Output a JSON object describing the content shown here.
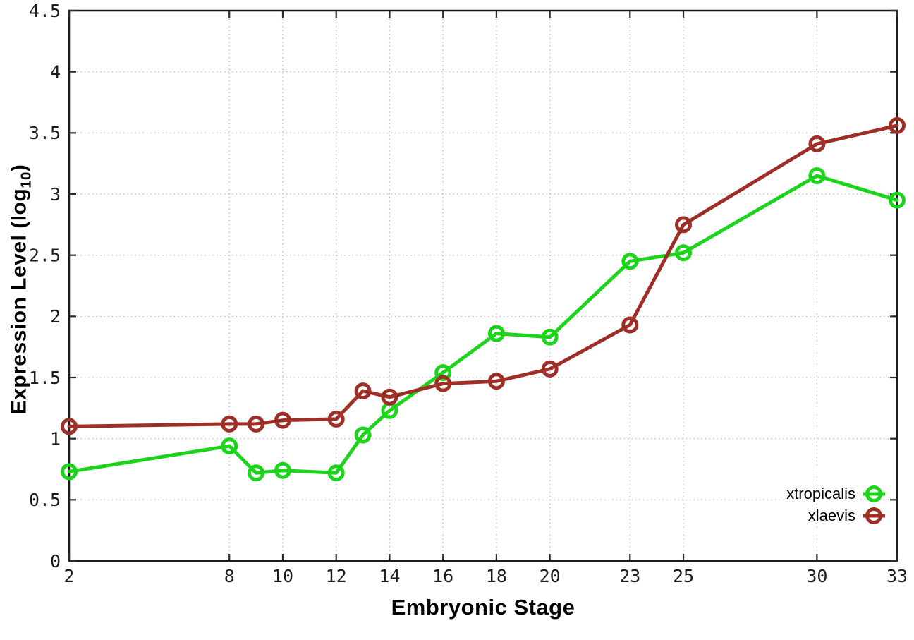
{
  "chart_data": {
    "type": "line",
    "title": "",
    "xlabel": "Embryonic Stage",
    "ylabel_parts": {
      "prefix": "Expression Level (log",
      "sub": "10",
      "suffix": ")"
    },
    "xlim": [
      2,
      33
    ],
    "ylim": [
      0,
      4.5
    ],
    "x_ticks": [
      2,
      8,
      10,
      12,
      14,
      16,
      18,
      20,
      23,
      25,
      30,
      33
    ],
    "y_ticks": [
      0,
      0.5,
      1,
      1.5,
      2,
      2.5,
      3,
      3.5,
      4,
      4.5
    ],
    "grid": true,
    "legend_position": "bottom-right",
    "x": [
      2,
      8,
      9,
      10,
      12,
      13,
      14,
      16,
      18,
      20,
      23,
      25,
      30,
      33
    ],
    "series": [
      {
        "name": "xtropicalis",
        "color": "#1bd41b",
        "values": [
          0.73,
          0.94,
          0.72,
          0.74,
          0.72,
          1.03,
          1.23,
          1.54,
          1.86,
          1.83,
          2.45,
          2.52,
          3.15,
          2.95
        ]
      },
      {
        "name": "xlaevis",
        "color": "#9e2f26",
        "values": [
          1.1,
          1.12,
          1.12,
          1.15,
          1.16,
          1.39,
          1.34,
          1.45,
          1.47,
          1.57,
          1.93,
          2.75,
          3.41,
          3.56
        ]
      }
    ]
  }
}
